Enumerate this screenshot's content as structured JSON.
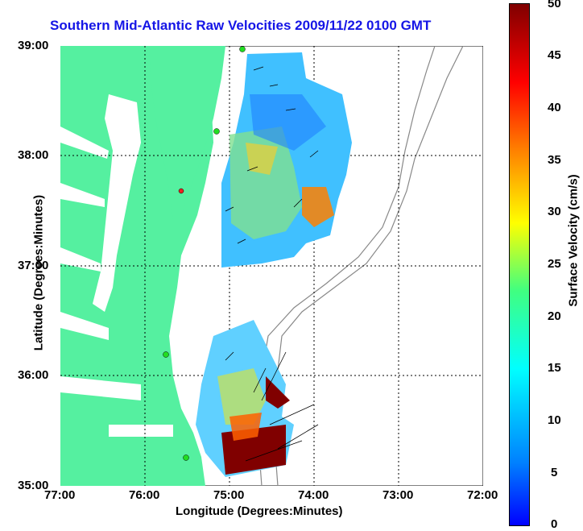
{
  "title": "Southern Mid-Atlantic Raw Velocities 2009/11/22 0100 GMT",
  "axes": {
    "xlabel": "Longitude (Degrees:Minutes)",
    "ylabel": "Latitude (Degrees:Minutes)",
    "xticks": [
      "77:00",
      "76:00",
      "75:00",
      "74:00",
      "73:00",
      "72:00"
    ],
    "yticks": [
      "39:00",
      "38:00",
      "37:00",
      "36:00",
      "35:00"
    ]
  },
  "colorbar": {
    "label": "Surface Velocity (cm/s)",
    "ticks": [
      "50",
      "45",
      "40",
      "35",
      "30",
      "25",
      "20",
      "15",
      "10",
      "5",
      "0"
    ],
    "range": [
      0,
      50
    ]
  },
  "colors": {
    "land": "#55f0a0",
    "title": "#1515e6",
    "station_green": "#22dd22",
    "station_red": "#ee2222"
  }
}
